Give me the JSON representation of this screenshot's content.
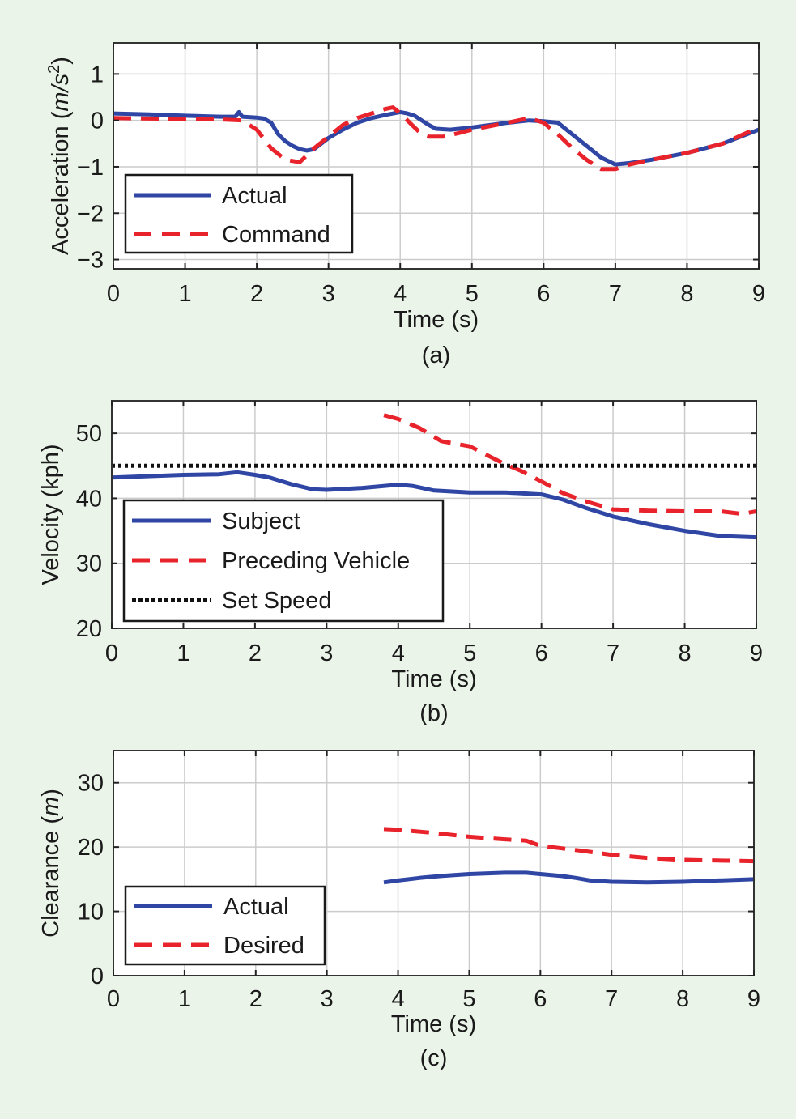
{
  "colors": {
    "background": "#eaf4e8",
    "actual": "#2f46a5",
    "command": "#e8232b",
    "set_speed": "#111111",
    "grid": "#cccccc"
  },
  "chart_data": [
    {
      "id": "a",
      "type": "line",
      "caption": "(a)",
      "xlabel": "Time (s)",
      "ylabel_pre": "Acceleration (",
      "ylabel_italic": "m/s",
      "ylabel_sup": "2",
      "ylabel_post": ")",
      "xlim": [
        0,
        9
      ],
      "ylim": [
        -3.2,
        1.67
      ],
      "xticks": [
        0,
        1,
        2,
        3,
        4,
        5,
        6,
        7,
        8,
        9
      ],
      "xtick_labels": [
        "0",
        "1",
        "2",
        "3",
        "4",
        "5",
        "6",
        "7",
        "8",
        "9"
      ],
      "yticks": [
        1,
        0,
        -1,
        -2,
        -3
      ],
      "ytick_labels": [
        "1",
        "0",
        "−1",
        "−2",
        "−3"
      ],
      "grid": true,
      "legend_position": "lower-left",
      "series": [
        {
          "name": "Actual",
          "style": "solid",
          "color": "#2f46a5",
          "x": [
            0,
            0.5,
            1,
            1.5,
            1.7,
            1.75,
            1.8,
            2,
            2.1,
            2.2,
            2.3,
            2.4,
            2.5,
            2.6,
            2.7,
            2.8,
            2.9,
            3,
            3.2,
            3.4,
            3.6,
            3.8,
            4,
            4.1,
            4.2,
            4.3,
            4.4,
            4.5,
            4.7,
            5,
            5.5,
            5.8,
            6,
            6.2,
            6.4,
            6.6,
            6.8,
            7,
            7.2,
            7.5,
            8,
            8.5,
            9
          ],
          "y": [
            0.15,
            0.13,
            0.1,
            0.08,
            0.08,
            0.18,
            0.08,
            0.06,
            0.04,
            -0.05,
            -0.3,
            -0.45,
            -0.55,
            -0.62,
            -0.65,
            -0.62,
            -0.5,
            -0.38,
            -0.2,
            -0.05,
            0.05,
            0.12,
            0.18,
            0.15,
            0.1,
            0.0,
            -0.1,
            -0.18,
            -0.2,
            -0.15,
            -0.05,
            0.0,
            -0.02,
            -0.05,
            -0.3,
            -0.55,
            -0.8,
            -0.95,
            -0.92,
            -0.85,
            -0.7,
            -0.5,
            -0.2
          ]
        },
        {
          "name": "Command",
          "style": "dashed",
          "color": "#e8232b",
          "x": [
            0,
            0.5,
            1,
            1.5,
            1.8,
            2,
            2.2,
            2.4,
            2.6,
            2.7,
            2.8,
            3,
            3.2,
            3.4,
            3.6,
            3.8,
            3.9,
            4,
            4.1,
            4.2,
            4.3,
            4.4,
            4.6,
            4.8,
            5,
            5.5,
            5.8,
            6,
            6.2,
            6.4,
            6.6,
            6.8,
            7,
            7.2,
            7.5,
            8,
            8.5,
            9
          ],
          "y": [
            0.05,
            0.04,
            0.03,
            0.02,
            0.0,
            -0.2,
            -0.6,
            -0.85,
            -0.9,
            -0.75,
            -0.6,
            -0.35,
            -0.1,
            0.05,
            0.15,
            0.25,
            0.28,
            0.15,
            0.0,
            -0.15,
            -0.3,
            -0.35,
            -0.35,
            -0.28,
            -0.2,
            -0.05,
            0.05,
            -0.05,
            -0.3,
            -0.6,
            -0.85,
            -1.05,
            -1.05,
            -0.95,
            -0.85,
            -0.7,
            -0.5,
            -0.15
          ]
        }
      ]
    },
    {
      "id": "b",
      "type": "line",
      "caption": "(b)",
      "xlabel": "Time (s)",
      "ylabel": "Velocity (kph)",
      "xlim": [
        0,
        9
      ],
      "ylim": [
        20,
        55
      ],
      "xticks": [
        0,
        1,
        2,
        3,
        4,
        5,
        6,
        7,
        8,
        9
      ],
      "xtick_labels": [
        "0",
        "1",
        "2",
        "3",
        "4",
        "5",
        "6",
        "7",
        "8",
        "9"
      ],
      "yticks": [
        50,
        40,
        30,
        20
      ],
      "ytick_labels": [
        "50",
        "40",
        "30",
        "20"
      ],
      "grid": true,
      "legend_position": "lower-left",
      "series": [
        {
          "name": "Subject",
          "style": "solid",
          "color": "#2f46a5",
          "x": [
            0,
            0.5,
            1,
            1.5,
            1.75,
            2,
            2.2,
            2.5,
            2.8,
            3,
            3.5,
            4,
            4.2,
            4.5,
            5,
            5.5,
            6,
            6.3,
            6.6,
            7,
            7.5,
            8,
            8.5,
            9
          ],
          "y": [
            43.2,
            43.4,
            43.6,
            43.7,
            44.0,
            43.6,
            43.2,
            42.2,
            41.4,
            41.3,
            41.6,
            42.1,
            41.9,
            41.2,
            40.9,
            40.9,
            40.6,
            39.8,
            38.6,
            37.2,
            36.0,
            35.0,
            34.2,
            34.0
          ]
        },
        {
          "name": "Preceding Vehicle",
          "style": "dashed",
          "color": "#e8232b",
          "x": [
            3.8,
            4,
            4.3,
            4.6,
            5,
            5.3,
            5.5,
            5.7,
            6,
            6.3,
            6.6,
            7,
            7.5,
            8,
            8.5,
            8.8,
            9
          ],
          "y": [
            52.8,
            52.2,
            50.8,
            48.8,
            48.0,
            46.3,
            45.2,
            44.3,
            42.6,
            40.8,
            39.6,
            38.3,
            38.1,
            38.0,
            38.0,
            37.6,
            38.0
          ]
        },
        {
          "name": "Set Speed",
          "style": "dotted",
          "color": "#111111",
          "x": [
            0,
            9
          ],
          "y": [
            45,
            45
          ]
        }
      ]
    },
    {
      "id": "c",
      "type": "line",
      "caption": "(c)",
      "xlabel": "Time (s)",
      "ylabel_pre": "Clearance (",
      "ylabel_italic": "m",
      "ylabel_post": ")",
      "xlim": [
        0,
        9
      ],
      "ylim": [
        0,
        35
      ],
      "xticks": [
        0,
        1,
        2,
        3,
        4,
        5,
        6,
        7,
        8,
        9
      ],
      "xtick_labels": [
        "0",
        "1",
        "2",
        "3",
        "4",
        "5",
        "6",
        "7",
        "8",
        "9"
      ],
      "yticks": [
        30,
        20,
        10,
        0
      ],
      "ytick_labels": [
        "30",
        "20",
        "10",
        "0"
      ],
      "grid": true,
      "legend_position": "lower-left",
      "series": [
        {
          "name": "Actual",
          "style": "solid",
          "color": "#2f46a5",
          "x": [
            3.8,
            4,
            4.3,
            4.6,
            5,
            5.5,
            5.8,
            6,
            6.3,
            6.5,
            6.7,
            7,
            7.5,
            8,
            8.5,
            9
          ],
          "y": [
            14.5,
            14.8,
            15.2,
            15.5,
            15.8,
            16.0,
            16.0,
            15.8,
            15.5,
            15.2,
            14.8,
            14.6,
            14.5,
            14.6,
            14.8,
            15.0
          ]
        },
        {
          "name": "Desired",
          "style": "dashed",
          "color": "#e8232b",
          "x": [
            3.8,
            4,
            4.5,
            5,
            5.5,
            5.8,
            6,
            6.3,
            6.6,
            7,
            7.5,
            8,
            8.5,
            9
          ],
          "y": [
            22.8,
            22.7,
            22.2,
            21.6,
            21.2,
            21.0,
            20.2,
            19.8,
            19.4,
            18.8,
            18.3,
            18.0,
            17.9,
            17.8
          ]
        }
      ]
    }
  ]
}
